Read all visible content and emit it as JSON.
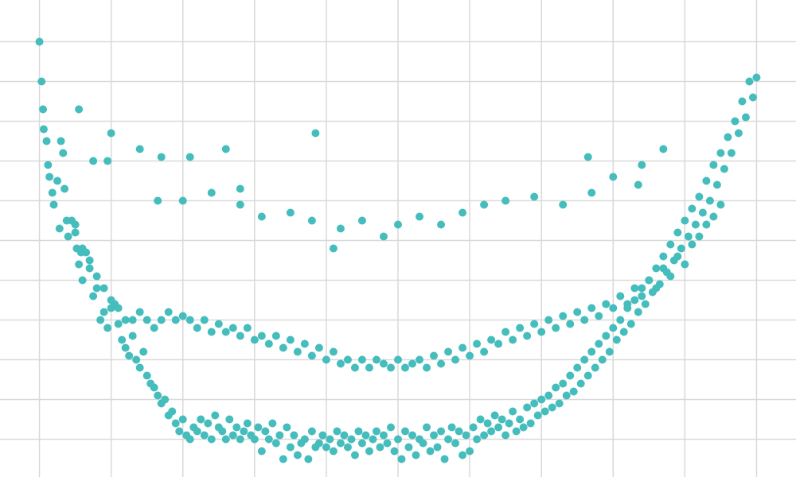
{
  "colors": {
    "background": "#ffffff",
    "grid": "#d9d9d9",
    "point": "#45bdbc"
  },
  "chart_data": {
    "type": "scatter",
    "title": "",
    "xlabel": "",
    "ylabel": "",
    "grid": true,
    "legend": "none",
    "xlim": [
      -0.55,
      10.55
    ],
    "ylim": [
      -0.95,
      11.05
    ],
    "x_ticks": [
      0,
      1,
      2,
      3,
      4,
      5,
      6,
      7,
      8,
      9,
      10
    ],
    "y_ticks": [
      0,
      1,
      2,
      3,
      4,
      5,
      6,
      7,
      8,
      9,
      10
    ],
    "points": [
      [
        0.0,
        10.0
      ],
      [
        0.03,
        9.0
      ],
      [
        0.05,
        8.3
      ],
      [
        0.06,
        7.8
      ],
      [
        0.1,
        7.5
      ],
      [
        0.12,
        6.9
      ],
      [
        0.14,
        6.6
      ],
      [
        0.18,
        6.2
      ],
      [
        0.2,
        5.9
      ],
      [
        0.25,
        6.5
      ],
      [
        0.28,
        5.3
      ],
      [
        0.3,
        7.5
      ],
      [
        0.33,
        7.2
      ],
      [
        0.35,
        6.3
      ],
      [
        0.38,
        5.5
      ],
      [
        0.4,
        5.1
      ],
      [
        0.45,
        5.5
      ],
      [
        0.5,
        5.2
      ],
      [
        0.52,
        4.8
      ],
      [
        0.55,
        4.4
      ],
      [
        0.58,
        4.7
      ],
      [
        0.6,
        4.0
      ],
      [
        0.65,
        4.7
      ],
      [
        0.7,
        4.3
      ],
      [
        0.75,
        3.6
      ],
      [
        0.8,
        3.8
      ],
      [
        0.85,
        3.0
      ],
      [
        0.9,
        3.2
      ],
      [
        0.95,
        2.8
      ],
      [
        1.0,
        3.3
      ],
      [
        1.05,
        3.4
      ],
      [
        1.1,
        2.9
      ],
      [
        1.15,
        2.5
      ],
      [
        1.2,
        2.3
      ],
      [
        1.25,
        2.1
      ],
      [
        1.3,
        2.6
      ],
      [
        1.35,
        2.0
      ],
      [
        1.4,
        1.8
      ],
      [
        1.45,
        2.2
      ],
      [
        1.5,
        1.6
      ],
      [
        1.55,
        1.4
      ],
      [
        1.6,
        1.3
      ],
      [
        1.65,
        1.1
      ],
      [
        1.7,
        0.9
      ],
      [
        1.75,
        1.0
      ],
      [
        1.8,
        0.6
      ],
      [
        1.85,
        0.7
      ],
      [
        1.9,
        0.4
      ],
      [
        1.95,
        0.2
      ],
      [
        2.0,
        0.5
      ],
      [
        2.05,
        0.1
      ],
      [
        2.1,
        0.0
      ],
      [
        2.15,
        0.3
      ],
      [
        2.2,
        0.2
      ],
      [
        2.25,
        0.5
      ],
      [
        2.3,
        0.1
      ],
      [
        2.35,
        0.4
      ],
      [
        2.4,
        0.0
      ],
      [
        2.45,
        0.6
      ],
      [
        2.5,
        0.3
      ],
      [
        2.55,
        0.2
      ],
      [
        2.6,
        0.0
      ],
      [
        2.65,
        0.5
      ],
      [
        2.7,
        0.1
      ],
      [
        2.75,
        0.3
      ],
      [
        2.8,
        0.0
      ],
      [
        2.85,
        0.2
      ],
      [
        2.9,
        0.4
      ],
      [
        2.95,
        0.1
      ],
      [
        3.0,
        0.0
      ],
      [
        3.05,
        0.3
      ],
      [
        3.1,
        -0.3
      ],
      [
        3.15,
        0.2
      ],
      [
        3.2,
        0.0
      ],
      [
        3.25,
        0.4
      ],
      [
        3.3,
        -0.1
      ],
      [
        3.35,
        0.1
      ],
      [
        3.4,
        -0.5
      ],
      [
        3.45,
        0.3
      ],
      [
        3.5,
        -0.2
      ],
      [
        3.55,
        0.1
      ],
      [
        3.6,
        -0.4
      ],
      [
        3.65,
        -0.1
      ],
      [
        3.7,
        0.0
      ],
      [
        3.75,
        -0.5
      ],
      [
        3.8,
        0.2
      ],
      [
        3.85,
        -0.2
      ],
      [
        3.9,
        -0.1
      ],
      [
        3.95,
        0.1
      ],
      [
        4.0,
        -0.2
      ],
      [
        4.05,
        0.0
      ],
      [
        4.1,
        -0.3
      ],
      [
        4.15,
        0.2
      ],
      [
        4.2,
        -0.1
      ],
      [
        4.25,
        0.1
      ],
      [
        4.3,
        -0.2
      ],
      [
        4.35,
        0.0
      ],
      [
        4.4,
        -0.4
      ],
      [
        4.45,
        0.2
      ],
      [
        4.5,
        -0.1
      ],
      [
        4.55,
        0.1
      ],
      [
        4.6,
        -0.3
      ],
      [
        4.65,
        0.0
      ],
      [
        4.7,
        0.2
      ],
      [
        4.75,
        -0.2
      ],
      [
        4.8,
        0.1
      ],
      [
        4.85,
        -0.1
      ],
      [
        4.9,
        0.3
      ],
      [
        4.95,
        -0.3
      ],
      [
        5.0,
        0.0
      ],
      [
        5.05,
        -0.5
      ],
      [
        5.1,
        0.2
      ],
      [
        5.15,
        -0.2
      ],
      [
        5.2,
        0.1
      ],
      [
        5.25,
        -0.4
      ],
      [
        5.3,
        0.0
      ],
      [
        5.35,
        -0.1
      ],
      [
        5.4,
        0.3
      ],
      [
        5.45,
        -0.3
      ],
      [
        5.5,
        0.1
      ],
      [
        5.55,
        -0.2
      ],
      [
        5.6,
        0.2
      ],
      [
        5.65,
        -0.5
      ],
      [
        5.7,
        0.0
      ],
      [
        5.75,
        0.3
      ],
      [
        5.8,
        -0.1
      ],
      [
        5.85,
        0.2
      ],
      [
        5.9,
        -0.4
      ],
      [
        5.95,
        0.1
      ],
      [
        6.0,
        -0.3
      ],
      [
        6.05,
        0.3
      ],
      [
        6.1,
        0.0
      ],
      [
        6.15,
        0.5
      ],
      [
        6.2,
        0.1
      ],
      [
        6.25,
        0.4
      ],
      [
        6.3,
        0.2
      ],
      [
        6.35,
        0.6
      ],
      [
        6.4,
        0.3
      ],
      [
        6.45,
        0.5
      ],
      [
        6.5,
        0.1
      ],
      [
        6.55,
        0.4
      ],
      [
        6.6,
        0.7
      ],
      [
        6.65,
        0.2
      ],
      [
        6.7,
        0.5
      ],
      [
        6.75,
        0.3
      ],
      [
        6.8,
        0.8
      ],
      [
        6.85,
        0.4
      ],
      [
        6.9,
        0.9
      ],
      [
        6.95,
        0.6
      ],
      [
        7.0,
        1.0
      ],
      [
        7.05,
        0.7
      ],
      [
        7.1,
        1.1
      ],
      [
        7.15,
        0.8
      ],
      [
        7.2,
        1.3
      ],
      [
        7.25,
        0.9
      ],
      [
        7.3,
        1.4
      ],
      [
        7.35,
        1.1
      ],
      [
        7.4,
        1.6
      ],
      [
        7.45,
        1.2
      ],
      [
        7.5,
        1.8
      ],
      [
        7.55,
        1.4
      ],
      [
        7.6,
        2.0
      ],
      [
        7.65,
        1.6
      ],
      [
        7.7,
        2.2
      ],
      [
        7.75,
        1.8
      ],
      [
        7.8,
        2.4
      ],
      [
        7.85,
        2.0
      ],
      [
        7.9,
        2.6
      ],
      [
        7.95,
        2.2
      ],
      [
        8.0,
        2.8
      ],
      [
        8.05,
        2.5
      ],
      [
        8.1,
        3.0
      ],
      [
        8.15,
        2.7
      ],
      [
        8.2,
        3.3
      ],
      [
        8.25,
        2.9
      ],
      [
        8.3,
        3.5
      ],
      [
        8.35,
        3.2
      ],
      [
        8.4,
        3.8
      ],
      [
        8.45,
        3.4
      ],
      [
        8.5,
        4.0
      ],
      [
        8.55,
        3.7
      ],
      [
        8.6,
        4.3
      ],
      [
        8.65,
        3.9
      ],
      [
        8.7,
        4.6
      ],
      [
        8.75,
        4.2
      ],
      [
        8.8,
        4.9
      ],
      [
        8.85,
        4.5
      ],
      [
        8.9,
        5.2
      ],
      [
        8.95,
        4.8
      ],
      [
        9.0,
        5.5
      ],
      [
        9.05,
        5.1
      ],
      [
        9.1,
        5.8
      ],
      [
        9.15,
        5.4
      ],
      [
        9.2,
        6.1
      ],
      [
        9.25,
        5.7
      ],
      [
        9.3,
        6.5
      ],
      [
        9.35,
        6.0
      ],
      [
        9.4,
        6.9
      ],
      [
        9.45,
        6.4
      ],
      [
        9.5,
        7.2
      ],
      [
        9.55,
        6.8
      ],
      [
        9.6,
        7.6
      ],
      [
        9.65,
        7.2
      ],
      [
        9.7,
        8.0
      ],
      [
        9.75,
        7.7
      ],
      [
        9.8,
        8.5
      ],
      [
        9.85,
        8.1
      ],
      [
        9.9,
        9.0
      ],
      [
        9.95,
        8.6
      ],
      [
        10.0,
        9.1
      ],
      [
        0.5,
        5.4
      ],
      [
        0.6,
        4.8
      ],
      [
        0.7,
        4.5
      ],
      [
        0.8,
        4.1
      ],
      [
        0.9,
        3.8
      ],
      [
        1.0,
        3.5
      ],
      [
        1.1,
        3.3
      ],
      [
        1.2,
        3.0
      ],
      [
        1.3,
        3.0
      ],
      [
        1.4,
        3.2
      ],
      [
        1.5,
        3.0
      ],
      [
        1.6,
        2.8
      ],
      [
        1.7,
        3.0
      ],
      [
        1.8,
        3.2
      ],
      [
        1.9,
        3.0
      ],
      [
        2.0,
        3.1
      ],
      [
        2.1,
        3.0
      ],
      [
        2.2,
        2.8
      ],
      [
        2.3,
        3.0
      ],
      [
        2.4,
        2.7
      ],
      [
        2.5,
        2.9
      ],
      [
        2.6,
        2.7
      ],
      [
        2.7,
        2.8
      ],
      [
        2.8,
        2.6
      ],
      [
        2.9,
        2.8
      ],
      [
        3.0,
        2.5
      ],
      [
        3.1,
        2.6
      ],
      [
        3.2,
        2.4
      ],
      [
        3.3,
        2.6
      ],
      [
        3.4,
        2.3
      ],
      [
        3.5,
        2.5
      ],
      [
        3.6,
        2.2
      ],
      [
        3.7,
        2.4
      ],
      [
        3.8,
        2.1
      ],
      [
        3.9,
        2.3
      ],
      [
        4.0,
        2.0
      ],
      [
        4.1,
        2.2
      ],
      [
        4.2,
        1.9
      ],
      [
        4.3,
        2.0
      ],
      [
        4.4,
        1.8
      ],
      [
        4.5,
        2.0
      ],
      [
        4.6,
        1.8
      ],
      [
        4.7,
        2.0
      ],
      [
        4.8,
        1.9
      ],
      [
        4.9,
        1.8
      ],
      [
        5.0,
        2.0
      ],
      [
        5.1,
        1.8
      ],
      [
        5.2,
        1.9
      ],
      [
        5.3,
        2.0
      ],
      [
        5.4,
        1.8
      ],
      [
        5.5,
        2.1
      ],
      [
        5.6,
        1.9
      ],
      [
        5.7,
        2.2
      ],
      [
        5.8,
        2.0
      ],
      [
        5.9,
        2.3
      ],
      [
        6.0,
        2.1
      ],
      [
        6.1,
        2.4
      ],
      [
        6.2,
        2.2
      ],
      [
        6.3,
        2.5
      ],
      [
        6.4,
        2.4
      ],
      [
        6.5,
        2.7
      ],
      [
        6.6,
        2.5
      ],
      [
        6.7,
        2.8
      ],
      [
        6.8,
        2.6
      ],
      [
        6.9,
        2.9
      ],
      [
        7.0,
        2.7
      ],
      [
        7.1,
        3.0
      ],
      [
        7.2,
        2.8
      ],
      [
        7.3,
        3.1
      ],
      [
        7.4,
        2.9
      ],
      [
        7.5,
        3.2
      ],
      [
        7.6,
        3.0
      ],
      [
        7.7,
        3.3
      ],
      [
        7.8,
        3.1
      ],
      [
        7.9,
        3.4
      ],
      [
        8.0,
        3.3
      ],
      [
        8.1,
        3.6
      ],
      [
        8.2,
        3.4
      ],
      [
        8.3,
        3.8
      ],
      [
        8.4,
        3.6
      ],
      [
        8.5,
        4.0
      ],
      [
        8.6,
        3.8
      ],
      [
        8.7,
        4.3
      ],
      [
        8.8,
        4.1
      ],
      [
        8.9,
        4.6
      ],
      [
        9.0,
        4.4
      ],
      [
        9.1,
        4.9
      ],
      [
        9.2,
        5.1
      ],
      [
        9.3,
        5.4
      ],
      [
        9.4,
        5.6
      ],
      [
        9.5,
        5.9
      ],
      [
        1.0,
        7.7
      ],
      [
        1.4,
        7.3
      ],
      [
        1.7,
        7.1
      ],
      [
        2.0,
        6.0
      ],
      [
        2.4,
        6.2
      ],
      [
        2.8,
        5.9
      ],
      [
        3.1,
        5.6
      ],
      [
        3.5,
        5.7
      ],
      [
        3.8,
        5.5
      ],
      [
        4.2,
        5.3
      ],
      [
        4.5,
        5.5
      ],
      [
        4.8,
        5.1
      ],
      [
        5.0,
        5.4
      ],
      [
        5.3,
        5.6
      ],
      [
        5.6,
        5.4
      ],
      [
        5.9,
        5.7
      ],
      [
        6.2,
        5.9
      ],
      [
        6.5,
        6.0
      ],
      [
        6.9,
        6.1
      ],
      [
        7.3,
        5.9
      ],
      [
        7.7,
        6.2
      ],
      [
        8.0,
        6.6
      ],
      [
        8.4,
        6.9
      ],
      [
        8.7,
        7.3
      ],
      [
        3.85,
        7.7
      ],
      [
        4.1,
        4.8
      ],
      [
        0.55,
        8.3
      ],
      [
        0.95,
        7.0
      ],
      [
        2.1,
        7.1
      ],
      [
        2.6,
        7.3
      ],
      [
        2.8,
        6.3
      ],
      [
        1.65,
        6.0
      ],
      [
        0.75,
        7.0
      ],
      [
        7.65,
        7.1
      ],
      [
        8.35,
        6.4
      ]
    ]
  }
}
